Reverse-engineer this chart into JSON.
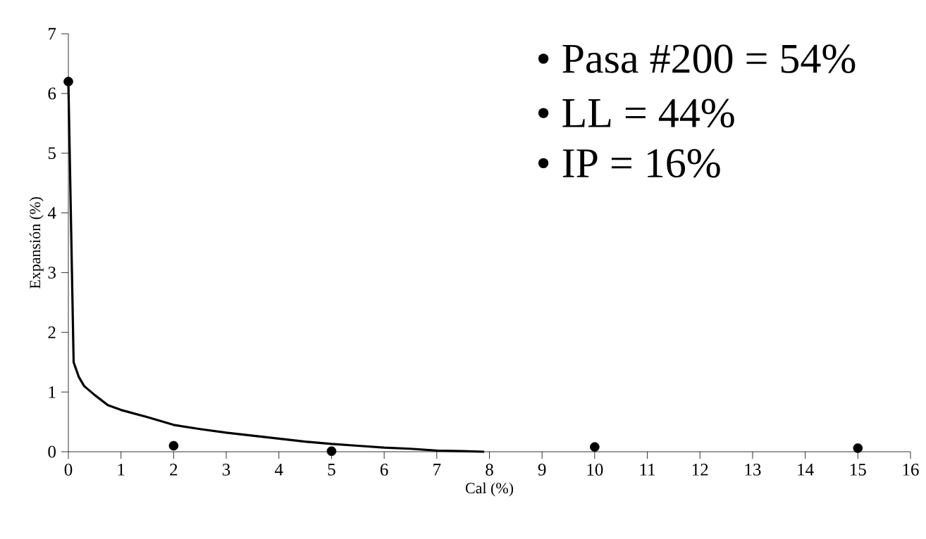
{
  "chart_data": {
    "type": "scatter",
    "xlabel": "Cal (%)",
    "ylabel": "Expansión (%)",
    "xlim": [
      0,
      16
    ],
    "ylim": [
      0,
      7
    ],
    "xticks": [
      0,
      1,
      2,
      3,
      4,
      5,
      6,
      7,
      8,
      9,
      10,
      11,
      12,
      13,
      14,
      15,
      16
    ],
    "yticks": [
      0,
      1,
      2,
      3,
      4,
      5,
      6,
      7
    ],
    "grid": false,
    "series": [
      {
        "color": "#000000",
        "marker": "circle",
        "x": [
          0,
          2,
          5,
          10,
          15
        ],
        "values": [
          6.2,
          0.1,
          0.01,
          0.08,
          0.06
        ]
      },
      {
        "type": "line",
        "color": "#000000",
        "marker": "none",
        "line_style": "solid",
        "x": [
          0,
          0.1,
          0.2,
          0.3,
          0.5,
          0.75,
          1,
          1.5,
          2,
          2.5,
          3,
          3.5,
          4,
          4.5,
          5,
          5.5,
          6,
          6.5,
          7,
          7.5,
          7.9
        ],
        "values": [
          6.2,
          1.5,
          1.25,
          1.1,
          0.95,
          0.78,
          0.7,
          0.58,
          0.45,
          0.38,
          0.32,
          0.27,
          0.22,
          0.17,
          0.13,
          0.1,
          0.07,
          0.05,
          0.02,
          0.01,
          0
        ]
      }
    ],
    "annotations": [
      "• Pasa #200 = 54%",
      "• LL = 44%",
      "• IP = 16%"
    ]
  }
}
